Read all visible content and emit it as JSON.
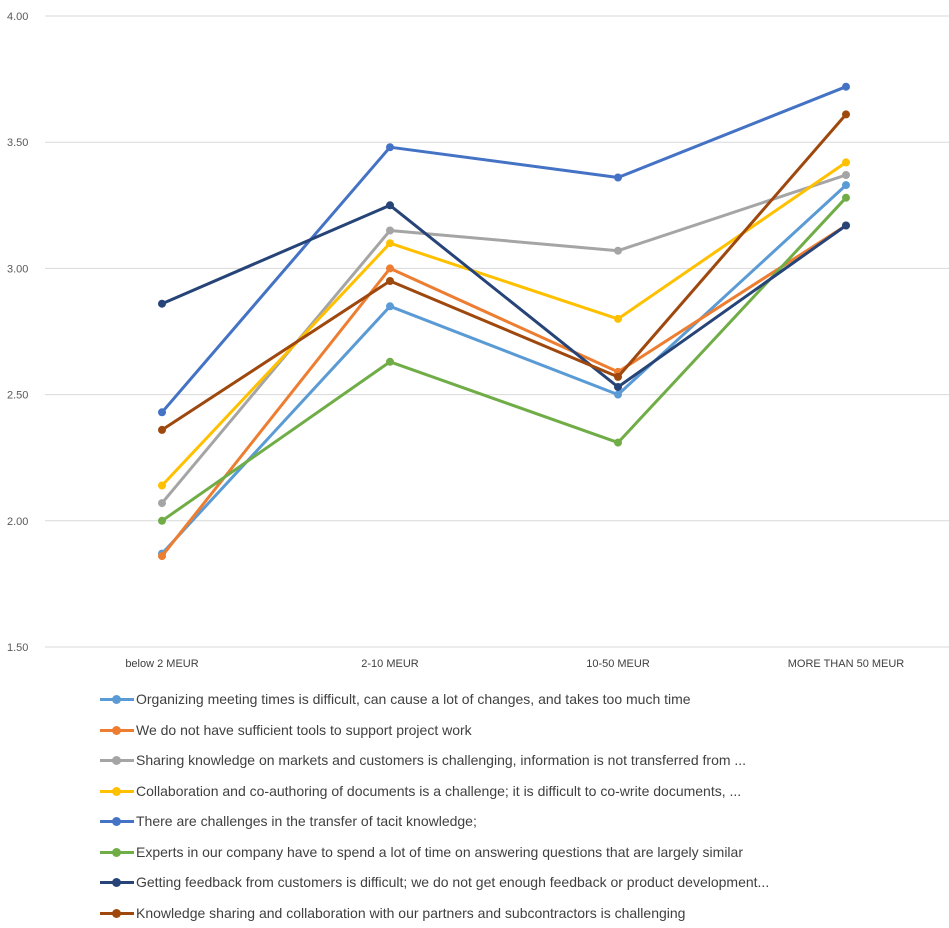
{
  "chart_data": {
    "type": "line",
    "categories": [
      "below 2 MEUR",
      "2-10 MEUR",
      "10-50 MEUR",
      "MORE THAN 50 MEUR"
    ],
    "y_ticks": [
      "1.50",
      "2.00",
      "2.50",
      "3.00",
      "3.50",
      "4.00"
    ],
    "ylim": [
      1.5,
      4.0
    ],
    "grid": true,
    "legend_position": "bottom",
    "series": [
      {
        "name": "Organizing meeting times is difficult, can cause a lot of changes, and takes too much time",
        "color": "#5B9BD5",
        "values": [
          1.87,
          2.85,
          2.5,
          3.33
        ]
      },
      {
        "name": "We do not have sufficient tools to support project work",
        "color": "#ED7D31",
        "values": [
          1.86,
          3.0,
          2.59,
          3.17
        ]
      },
      {
        "name": "Sharing knowledge on markets and customers is challenging, information is not transferred from ...",
        "color": "#A5A5A5",
        "values": [
          2.07,
          3.15,
          3.07,
          3.37
        ]
      },
      {
        "name": "Collaboration and co-authoring of documents is a challenge; it is difficult to co-write documents, ...",
        "color": "#FFC000",
        "values": [
          2.14,
          3.1,
          2.8,
          3.42
        ]
      },
      {
        "name": "There are challenges in the transfer of tacit knowledge;",
        "color": "#4472C4",
        "values": [
          2.43,
          3.48,
          3.36,
          3.72
        ]
      },
      {
        "name": "Experts in our company have to spend a lot of time on answering questions that are largely similar",
        "color": "#70AD47",
        "values": [
          2.0,
          2.63,
          2.31,
          3.28
        ]
      },
      {
        "name": "Getting feedback from customers is difficult; we do not get enough feedback or product development...",
        "color": "#264478",
        "values": [
          2.86,
          3.25,
          2.53,
          3.17
        ]
      },
      {
        "name": "Knowledge sharing and collaboration with our partners and subcontractors is challenging",
        "color": "#9E480E",
        "values": [
          2.36,
          2.95,
          2.57,
          3.61
        ]
      }
    ]
  }
}
